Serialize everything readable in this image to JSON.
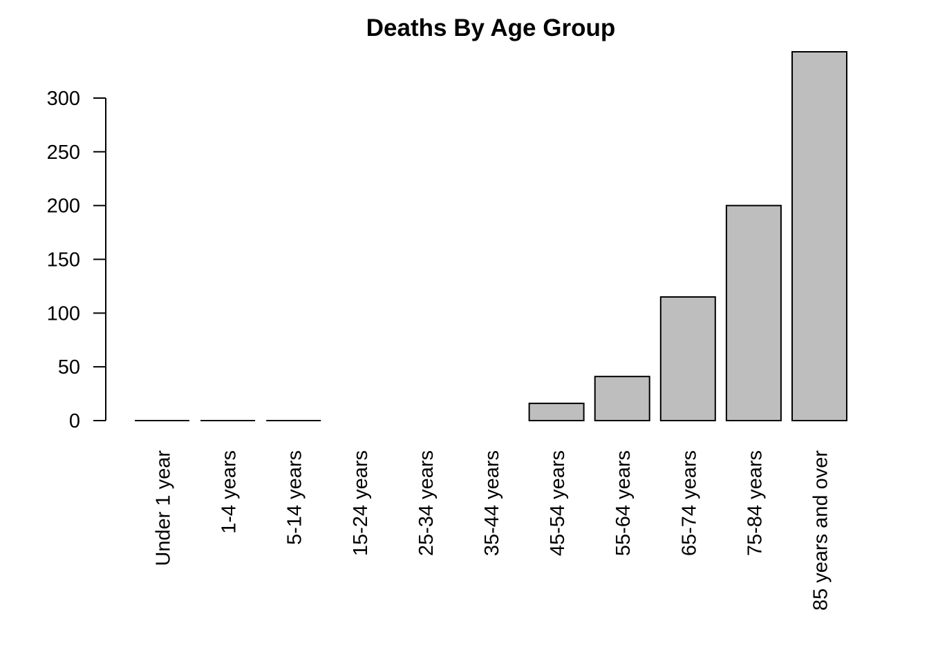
{
  "chart_data": {
    "type": "bar",
    "title": "Deaths By Age Group",
    "xlabel": "",
    "ylabel": "",
    "categories": [
      "Under 1 year",
      "1-4 years",
      "5-14 years",
      "15-24 years",
      "25-34 years",
      "35-44 years",
      "45-54 years",
      "55-64 years",
      "65-74 years",
      "75-84 years",
      "85 years and over"
    ],
    "values": [
      0,
      0,
      0,
      null,
      null,
      null,
      16,
      41,
      115,
      200,
      343
    ],
    "y_ticks": [
      0,
      50,
      100,
      150,
      200,
      250,
      300
    ],
    "y_tick_labels": [
      "0",
      "50",
      "100",
      "150",
      "200",
      "250",
      "300"
    ],
    "ylim": [
      0,
      343
    ],
    "bar_color": "#bebebe",
    "grid": false,
    "legend": "none"
  }
}
